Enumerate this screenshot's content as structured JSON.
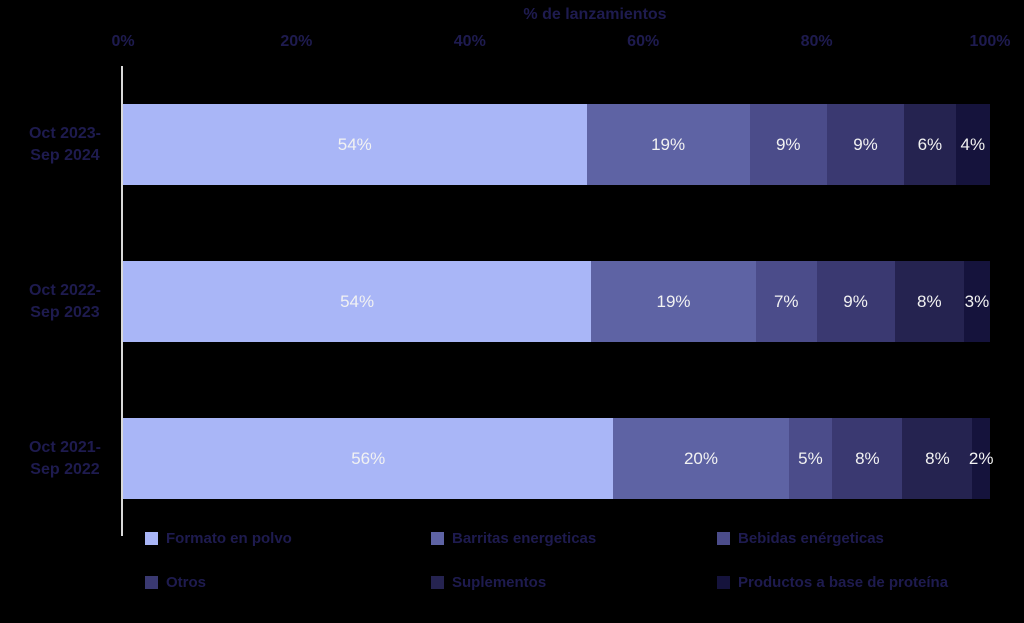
{
  "chart": {
    "title": "% de lanzamientos",
    "background_color": "#000000",
    "text_color": "#1e1b4f",
    "axis_line_color": "#d9d9d9",
    "value_label_color": "#f2f2f2"
  },
  "chart_data": {
    "type": "bar",
    "stacked": true,
    "orientation": "horizontal",
    "title": "% de lanzamientos",
    "xlabel": "",
    "ylabel": "",
    "xlim": [
      0,
      100
    ],
    "grid": false,
    "legend_position": "bottom",
    "x_tick_labels": [
      "0%",
      "20%",
      "40%",
      "60%",
      "80%",
      "100%"
    ],
    "x_tick_values": [
      0,
      20,
      40,
      60,
      80,
      100
    ],
    "categories": [
      "Oct 2023-Sep 2024",
      "Oct 2022-Sep 2023",
      "Oct 2021-Sep 2022"
    ],
    "category_label_lines": [
      [
        "Oct 2023-",
        "Sep 2024"
      ],
      [
        "Oct 2022-",
        "Sep 2023"
      ],
      [
        "Oct 2021-",
        "Sep 2022"
      ]
    ],
    "series": [
      {
        "name": "Formato en polvo",
        "color": "#a9b6f7",
        "values": [
          54,
          54,
          56
        ]
      },
      {
        "name": "Barritas energeticas",
        "color": "#5e63a4",
        "values": [
          19,
          19,
          20
        ]
      },
      {
        "name": "Bebidas enérgeticas",
        "color": "#4b4c8a",
        "values": [
          9,
          7,
          5
        ]
      },
      {
        "name": "Otros",
        "color": "#3a3971",
        "values": [
          9,
          9,
          8
        ]
      },
      {
        "name": "Suplementos",
        "color": "#252350",
        "values": [
          6,
          8,
          8
        ]
      },
      {
        "name": "Productos a base de proteína",
        "color": "#15133c",
        "values": [
          4,
          3,
          2
        ]
      }
    ],
    "value_label_suffix": "%"
  },
  "legend": {
    "rows": [
      [
        "Formato en polvo",
        "Barritas energeticas",
        "Bebidas enérgeticas"
      ],
      [
        "Otros",
        "Suplementos",
        "Productos a base de proteína"
      ]
    ]
  }
}
